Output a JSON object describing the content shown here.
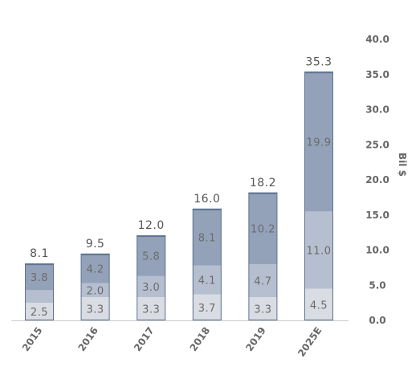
{
  "chart_data": {
    "type": "bar",
    "stacked": true,
    "categories": [
      "2015",
      "2016",
      "2017",
      "2018",
      "2019",
      "2025E"
    ],
    "series": [
      {
        "values": [
          2.5,
          3.3,
          3.3,
          3.7,
          3.3,
          4.5
        ],
        "color": "#d9dce3"
      },
      {
        "values": [
          1.8,
          2.0,
          3.0,
          4.1,
          4.7,
          11.0
        ],
        "value_labels": [
          "",
          "2.0",
          "3.0",
          "4.1",
          "4.7",
          "11.0"
        ],
        "color": "#b6bfcf"
      },
      {
        "values": [
          3.8,
          4.2,
          5.8,
          8.1,
          10.2,
          19.9
        ],
        "color": "#93a2b9"
      }
    ],
    "totals": [
      "8.1",
      "9.5",
      "12.0",
      "16.0",
      "18.2",
      "35.3"
    ],
    "ylabel": "Bil $",
    "ylim": [
      0,
      40
    ],
    "yticks": [
      "0.0",
      "5.0",
      "10.0",
      "15.0",
      "20.0",
      "25.0",
      "30.0",
      "35.0",
      "40.0"
    ],
    "y_axis_position": "right",
    "grid": false,
    "legend": "none",
    "border_color": "#5f7494",
    "axis_color": "#cccccc"
  }
}
